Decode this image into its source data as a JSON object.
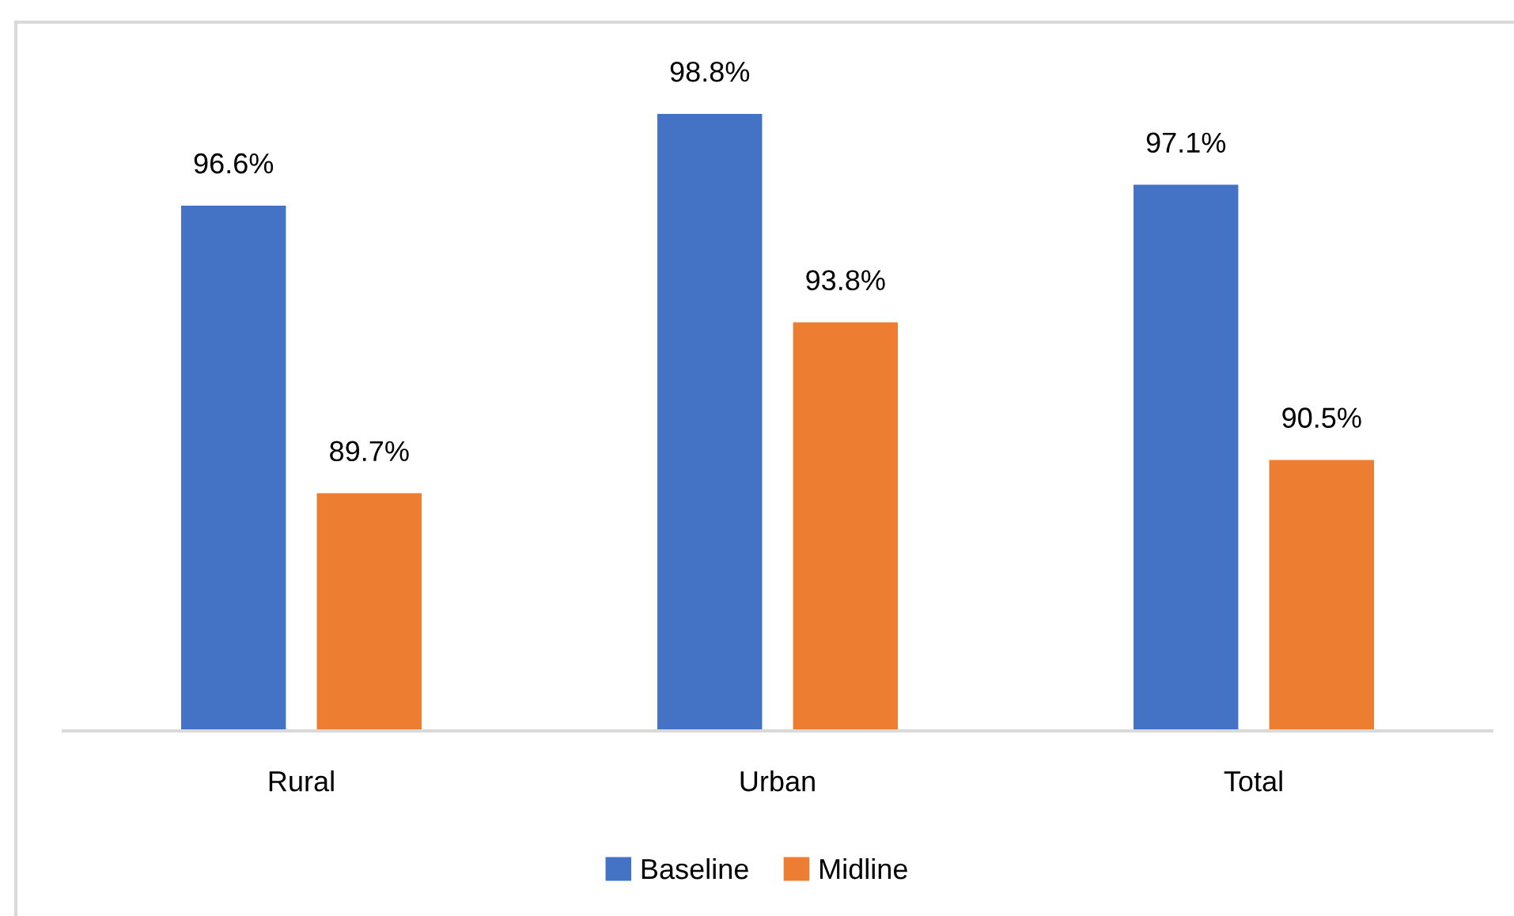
{
  "chart_data": {
    "type": "bar",
    "categories": [
      "Rural",
      "Urban",
      "Total"
    ],
    "series": [
      {
        "name": "Baseline",
        "color": "#4472c4",
        "values": [
          96.6,
          98.8,
          97.1
        ],
        "value_labels": [
          "96.6%",
          "98.8%",
          "97.1%"
        ]
      },
      {
        "name": "Midline",
        "color": "#ed7d31",
        "values": [
          89.7,
          93.8,
          90.5
        ],
        "value_labels": [
          "89.7%",
          "93.8%",
          "90.5%"
        ]
      }
    ],
    "ylim": [
      84,
      101
    ],
    "legend": "bottom",
    "tick_labels": "x"
  }
}
